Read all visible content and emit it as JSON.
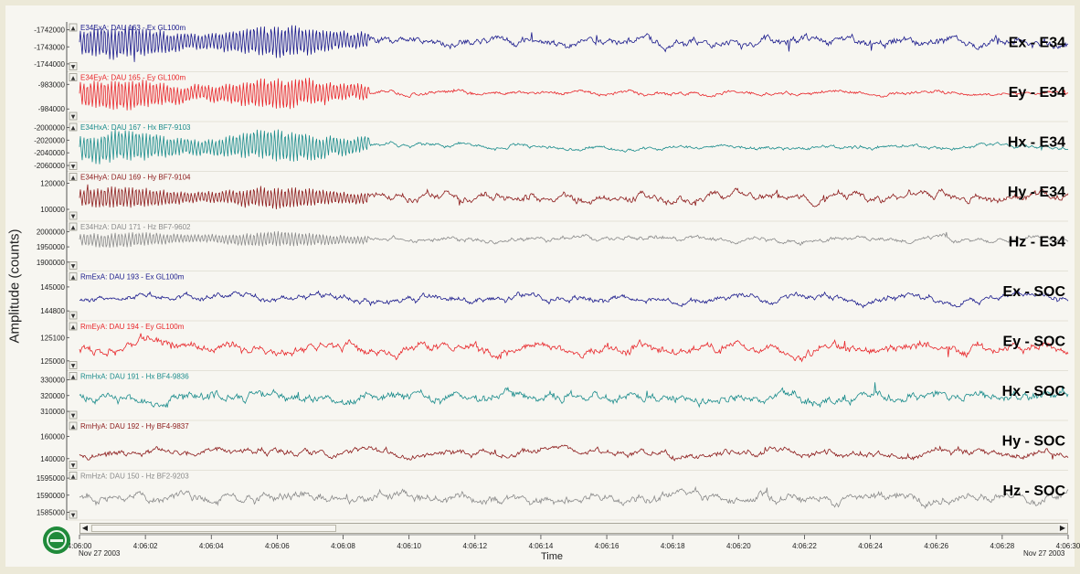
{
  "chart_data": {
    "type": "line",
    "ylabel": "Amplitude (counts)",
    "xlabel": "Time",
    "x_start_label": "Nov 27 2003",
    "x_end_label": "Nov 27 2003",
    "x_ticks": [
      "4:06:00",
      "4:06:02",
      "4:06:04",
      "4:06:06",
      "4:06:08",
      "4:06:10",
      "4:06:12",
      "4:06:14",
      "4:06:16",
      "4:06:18",
      "4:06:20",
      "4:06:22",
      "4:06:24",
      "4:06:26",
      "4:06:28",
      "4:06:30"
    ],
    "x_range_seconds": [
      0,
      30
    ],
    "series": [
      {
        "name": "E34ExA: DAU 163 - Ex GL100m",
        "title": "Ex - E34",
        "color": "#1a1a8c",
        "ticks": [
          "-1742000",
          "-1743000",
          "-1744000"
        ],
        "tick_values": [
          -1742000,
          -1743000,
          -1744000
        ],
        "ylim": [
          -1744300,
          -1741700
        ],
        "baseline": -1742700,
        "quiet_amp": 270,
        "burst_amp": 900,
        "burst_until": 8.8,
        "seed": 11
      },
      {
        "name": "E34EyA: DAU 165 - Ey GL100m",
        "title": "Ey - E34",
        "color": "#e8262a",
        "ticks": [
          "-983000",
          "-984000"
        ],
        "tick_values": [
          -983000,
          -984000
        ],
        "ylim": [
          -984400,
          -982600
        ],
        "baseline": -983350,
        "quiet_amp": 90,
        "burst_amp": 600,
        "burst_until": 8.8,
        "seed": 23
      },
      {
        "name": "E34HxA: DAU 167 - Hx BF7-9103",
        "title": "Hx - E34",
        "color": "#1b8c8c",
        "ticks": [
          "-2000000",
          "-2020000",
          "-2040000",
          "-2060000"
        ],
        "tick_values": [
          -2000000,
          -2020000,
          -2040000,
          -2060000
        ],
        "ylim": [
          -2065000,
          -1995000
        ],
        "baseline": -2030000,
        "quiet_amp": 3500,
        "burst_amp": 24000,
        "burst_until": 8.8,
        "seed": 37
      },
      {
        "name": "E34HyA: DAU 169 - Hy BF7-9104",
        "title": "Hy - E34",
        "color": "#8c1a1a",
        "ticks": [
          "120000",
          "100000"
        ],
        "tick_values": [
          120000,
          100000
        ],
        "ylim": [
          93000,
          127000
        ],
        "baseline": 109000,
        "quiet_amp": 3500,
        "burst_amp": 8000,
        "burst_until": 8.8,
        "seed": 41
      },
      {
        "name": "E34HzA: DAU 171 - Hz BF7-9602",
        "title": "Hz - E34",
        "color": "#8a8a8a",
        "ticks": [
          "2000000",
          "1950000",
          "1900000"
        ],
        "tick_values": [
          2000000,
          1950000,
          1900000
        ],
        "ylim": [
          1880000,
          2025000
        ],
        "baseline": 1975000,
        "quiet_amp": 9000,
        "burst_amp": 24000,
        "burst_until": 8.8,
        "seed": 53
      },
      {
        "name": "RmExA: DAU 193 - Ex GL100m",
        "title": "Ex - SOC",
        "color": "#1a1a8c",
        "ticks": [
          "145000",
          "144800"
        ],
        "tick_values": [
          145000,
          144800
        ],
        "ylim": [
          144740,
          145110
        ],
        "baseline": 144900,
        "quiet_amp": 30,
        "burst_amp": 30,
        "burst_until": 0,
        "seed": 61
      },
      {
        "name": "RmEyA: DAU 194 - Ey GL100m",
        "title": "Ey - SOC",
        "color": "#e8262a",
        "ticks": [
          "125100",
          "125000"
        ],
        "tick_values": [
          125100,
          125000
        ],
        "ylim": [
          124970,
          125160
        ],
        "baseline": 125055,
        "quiet_amp": 22,
        "burst_amp": 22,
        "burst_until": 0,
        "seed": 73
      },
      {
        "name": "RmHxA: DAU 191 - Hx BF4-9836",
        "title": "Hx - SOC",
        "color": "#1b8c8c",
        "ticks": [
          "330000",
          "320000",
          "310000"
        ],
        "tick_values": [
          330000,
          320000,
          310000
        ],
        "ylim": [
          306000,
          334000
        ],
        "baseline": 319000,
        "quiet_amp": 3500,
        "burst_amp": 3500,
        "burst_until": 0,
        "seed": 83
      },
      {
        "name": "RmHyA: DAU 192 - Hy BF4-9837",
        "title": "Hy - SOC",
        "color": "#8c1a1a",
        "ticks": [
          "160000",
          "140000"
        ],
        "tick_values": [
          160000,
          140000
        ],
        "ylim": [
          132000,
          172000
        ],
        "baseline": 145000,
        "quiet_amp": 3500,
        "burst_amp": 3500,
        "burst_until": 0,
        "seed": 97
      },
      {
        "name": "RmHzA: DAU 150 - Hz BF2-9203",
        "title": "Hz - SOC",
        "color": "#8a8a8a",
        "ticks": [
          "1595000",
          "1590000",
          "1585000"
        ],
        "tick_values": [
          1595000,
          1590000,
          1585000
        ],
        "ylim": [
          1583500,
          1596500
        ],
        "baseline": 1589500,
        "quiet_amp": 1500,
        "burst_amp": 1500,
        "burst_until": 0,
        "seed": 101
      }
    ]
  }
}
